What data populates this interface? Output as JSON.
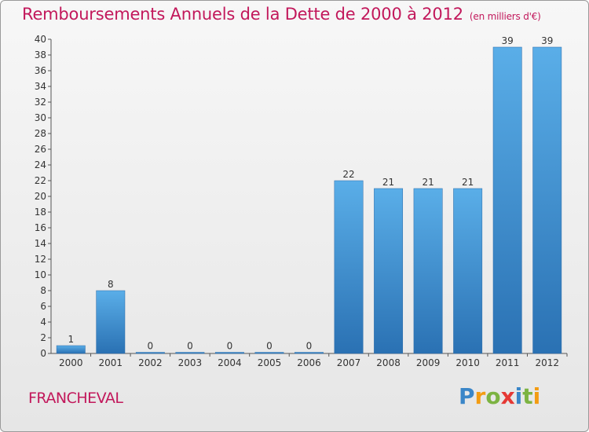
{
  "title": "Remboursements Annuels de la Dette de 2000 à 2012",
  "subtitle": "(en milliers d'€)",
  "commune": "FRANCHEVAL",
  "logo": {
    "letters": [
      "P",
      "r",
      "o",
      "x",
      "i",
      "t",
      "i"
    ],
    "colors": [
      "#3a86c8",
      "#f39c12",
      "#7cb342",
      "#e53935",
      "#3a86c8",
      "#7cb342",
      "#f39c12"
    ]
  },
  "colors": {
    "bar": "#3f95d9",
    "bar_dark": "#2b72b4",
    "title": "#c2185b"
  },
  "chart_data": {
    "type": "bar",
    "title": "Remboursements Annuels de la Dette de 2000 à 2012",
    "subtitle": "(en milliers d'€)",
    "categories": [
      "2000",
      "2001",
      "2002",
      "2003",
      "2004",
      "2005",
      "2006",
      "2007",
      "2008",
      "2009",
      "2010",
      "2011",
      "2012"
    ],
    "values": [
      1,
      8,
      0,
      0,
      0,
      0,
      0,
      22,
      21,
      21,
      21,
      39,
      39
    ],
    "ylim": [
      0,
      40
    ],
    "yticks": [
      0,
      2,
      4,
      6,
      8,
      10,
      12,
      14,
      16,
      18,
      20,
      22,
      24,
      26,
      28,
      30,
      32,
      34,
      36,
      38,
      40
    ],
    "grid": false,
    "legend": "none"
  }
}
